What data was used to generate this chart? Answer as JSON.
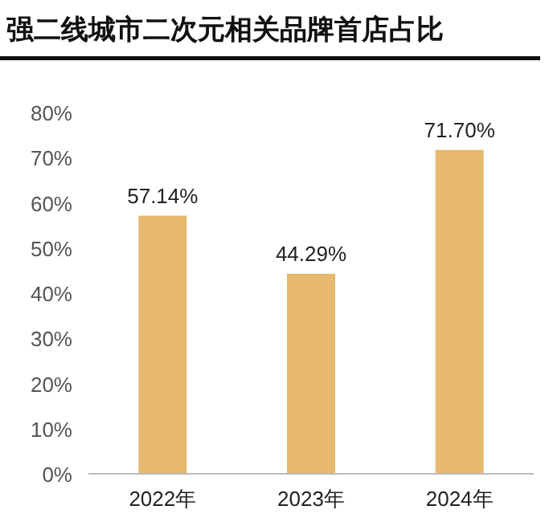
{
  "chart_data": {
    "type": "bar",
    "title": "强二线城市二次元相关品牌首店占比",
    "categories": [
      "2022年",
      "2023年",
      "2024年"
    ],
    "values": [
      57.14,
      44.29,
      71.7
    ],
    "value_labels": [
      "57.14%",
      "44.29%",
      "71.70%"
    ],
    "color": "#e6b96f",
    "ylim": [
      0,
      80
    ],
    "yticks": [
      {
        "value": 0,
        "label": "0%"
      },
      {
        "value": 10,
        "label": "10%"
      },
      {
        "value": 20,
        "label": "20%"
      },
      {
        "value": 30,
        "label": "30%"
      },
      {
        "value": 40,
        "label": "40%"
      },
      {
        "value": 50,
        "label": "50%"
      },
      {
        "value": 60,
        "label": "60%"
      },
      {
        "value": 70,
        "label": "70%"
      },
      {
        "value": 80,
        "label": "80%"
      }
    ],
    "grid": false
  }
}
